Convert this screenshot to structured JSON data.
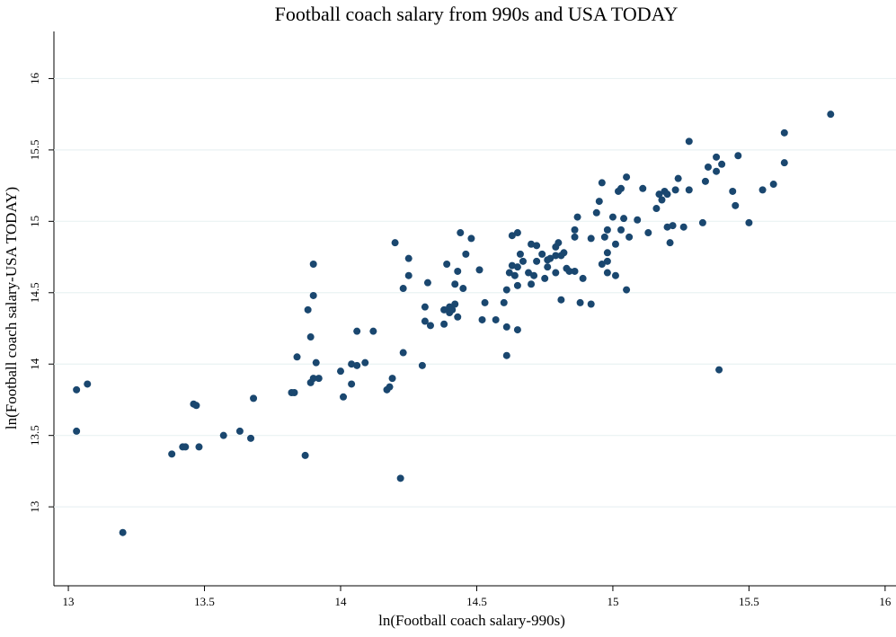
{
  "chart_data": {
    "type": "scatter",
    "title": "Football coach salary from 990s and USA TODAY",
    "x_label": "ln(Football coach salary-990s)",
    "y_label": "ln(Football coach salary-USA TODAY)",
    "color": "#1a476f",
    "grid": true,
    "xlim": [
      12.947,
      16.04
    ],
    "ylim": [
      12.447,
      16.33
    ],
    "xticks": [
      13,
      13.5,
      14,
      14.5,
      15,
      15.5,
      16
    ],
    "yticks": [
      13,
      13.5,
      14,
      14.5,
      15,
      15.5,
      16
    ],
    "x": [
      13.03,
      13.03,
      13.07,
      13.2,
      13.38,
      13.42,
      13.43,
      13.46,
      13.47,
      13.48,
      13.57,
      13.63,
      13.67,
      13.68,
      13.82,
      13.83,
      13.84,
      13.87,
      13.89,
      13.9,
      13.9,
      13.91,
      13.92,
      13.88,
      13.9,
      13.89,
      14.0,
      14.01,
      14.04,
      14.04,
      14.06,
      14.06,
      14.09,
      14.12,
      14.17,
      14.18,
      14.19,
      14.2,
      14.22,
      14.23,
      14.23,
      14.25,
      14.25,
      14.3,
      14.31,
      14.31,
      14.32,
      14.33,
      14.38,
      14.38,
      14.39,
      14.4,
      14.4,
      14.41,
      14.42,
      14.42,
      14.43,
      14.43,
      14.44,
      14.45,
      14.46,
      14.48,
      14.51,
      14.52,
      14.53,
      14.57,
      14.6,
      14.61,
      14.61,
      14.61,
      14.62,
      14.63,
      14.64,
      14.63,
      14.65,
      14.65,
      14.65,
      14.65,
      14.66,
      14.67,
      14.69,
      14.7,
      14.7,
      14.71,
      14.72,
      14.72,
      14.74,
      14.75,
      14.76,
      14.76,
      14.77,
      14.79,
      14.79,
      14.79,
      14.8,
      14.81,
      14.81,
      14.82,
      14.83,
      14.84,
      14.86,
      14.86,
      14.86,
      14.87,
      14.89,
      14.88,
      14.92,
      14.92,
      14.94,
      14.95,
      14.96,
      14.96,
      14.97,
      14.98,
      14.98,
      14.98,
      14.98,
      15.0,
      15.01,
      15.01,
      15.02,
      15.03,
      15.03,
      15.04,
      15.05,
      15.05,
      15.06,
      15.09,
      15.11,
      15.13,
      15.16,
      15.17,
      15.18,
      15.19,
      15.2,
      15.2,
      15.21,
      15.22,
      15.23,
      15.24,
      15.26,
      15.28,
      15.28,
      15.33,
      15.34,
      15.35,
      15.38,
      15.38,
      15.39,
      15.4,
      15.44,
      15.45,
      15.46,
      15.5,
      15.55,
      15.59,
      15.63,
      15.63,
      15.8
    ],
    "values": [
      13.82,
      13.53,
      13.86,
      12.82,
      13.37,
      13.42,
      13.42,
      13.72,
      13.71,
      13.42,
      13.5,
      13.53,
      13.48,
      13.76,
      13.8,
      13.8,
      14.05,
      13.36,
      13.87,
      14.7,
      13.9,
      14.01,
      13.9,
      14.38,
      14.48,
      14.19,
      13.95,
      13.77,
      13.86,
      14.0,
      13.99,
      14.23,
      14.01,
      14.23,
      13.82,
      13.84,
      13.9,
      14.85,
      13.2,
      14.53,
      14.08,
      14.74,
      14.62,
      13.99,
      14.4,
      14.3,
      14.57,
      14.27,
      14.28,
      14.38,
      14.7,
      14.4,
      14.36,
      14.38,
      14.56,
      14.42,
      14.65,
      14.33,
      14.92,
      14.53,
      14.77,
      14.88,
      14.66,
      14.31,
      14.43,
      14.31,
      14.43,
      14.06,
      14.52,
      14.26,
      14.64,
      14.69,
      14.62,
      14.9,
      14.24,
      14.92,
      14.55,
      14.68,
      14.77,
      14.72,
      14.64,
      14.56,
      14.84,
      14.62,
      14.83,
      14.72,
      14.77,
      14.6,
      14.73,
      14.68,
      14.74,
      14.82,
      14.76,
      14.64,
      14.85,
      14.45,
      14.76,
      14.78,
      14.67,
      14.65,
      14.65,
      14.94,
      14.89,
      15.03,
      14.6,
      14.43,
      14.42,
      14.88,
      15.06,
      15.14,
      14.7,
      15.27,
      14.89,
      14.94,
      14.72,
      14.64,
      14.78,
      15.03,
      14.62,
      14.84,
      15.21,
      15.23,
      14.94,
      15.02,
      15.31,
      14.52,
      14.89,
      15.01,
      15.23,
      14.92,
      15.09,
      15.19,
      15.15,
      15.21,
      14.96,
      15.19,
      14.85,
      14.97,
      15.22,
      15.3,
      14.96,
      15.56,
      15.22,
      14.99,
      15.28,
      15.38,
      15.35,
      15.45,
      13.96,
      15.4,
      15.21,
      15.11,
      15.46,
      14.99,
      15.22,
      15.26,
      15.62,
      15.41,
      15.75
    ]
  }
}
